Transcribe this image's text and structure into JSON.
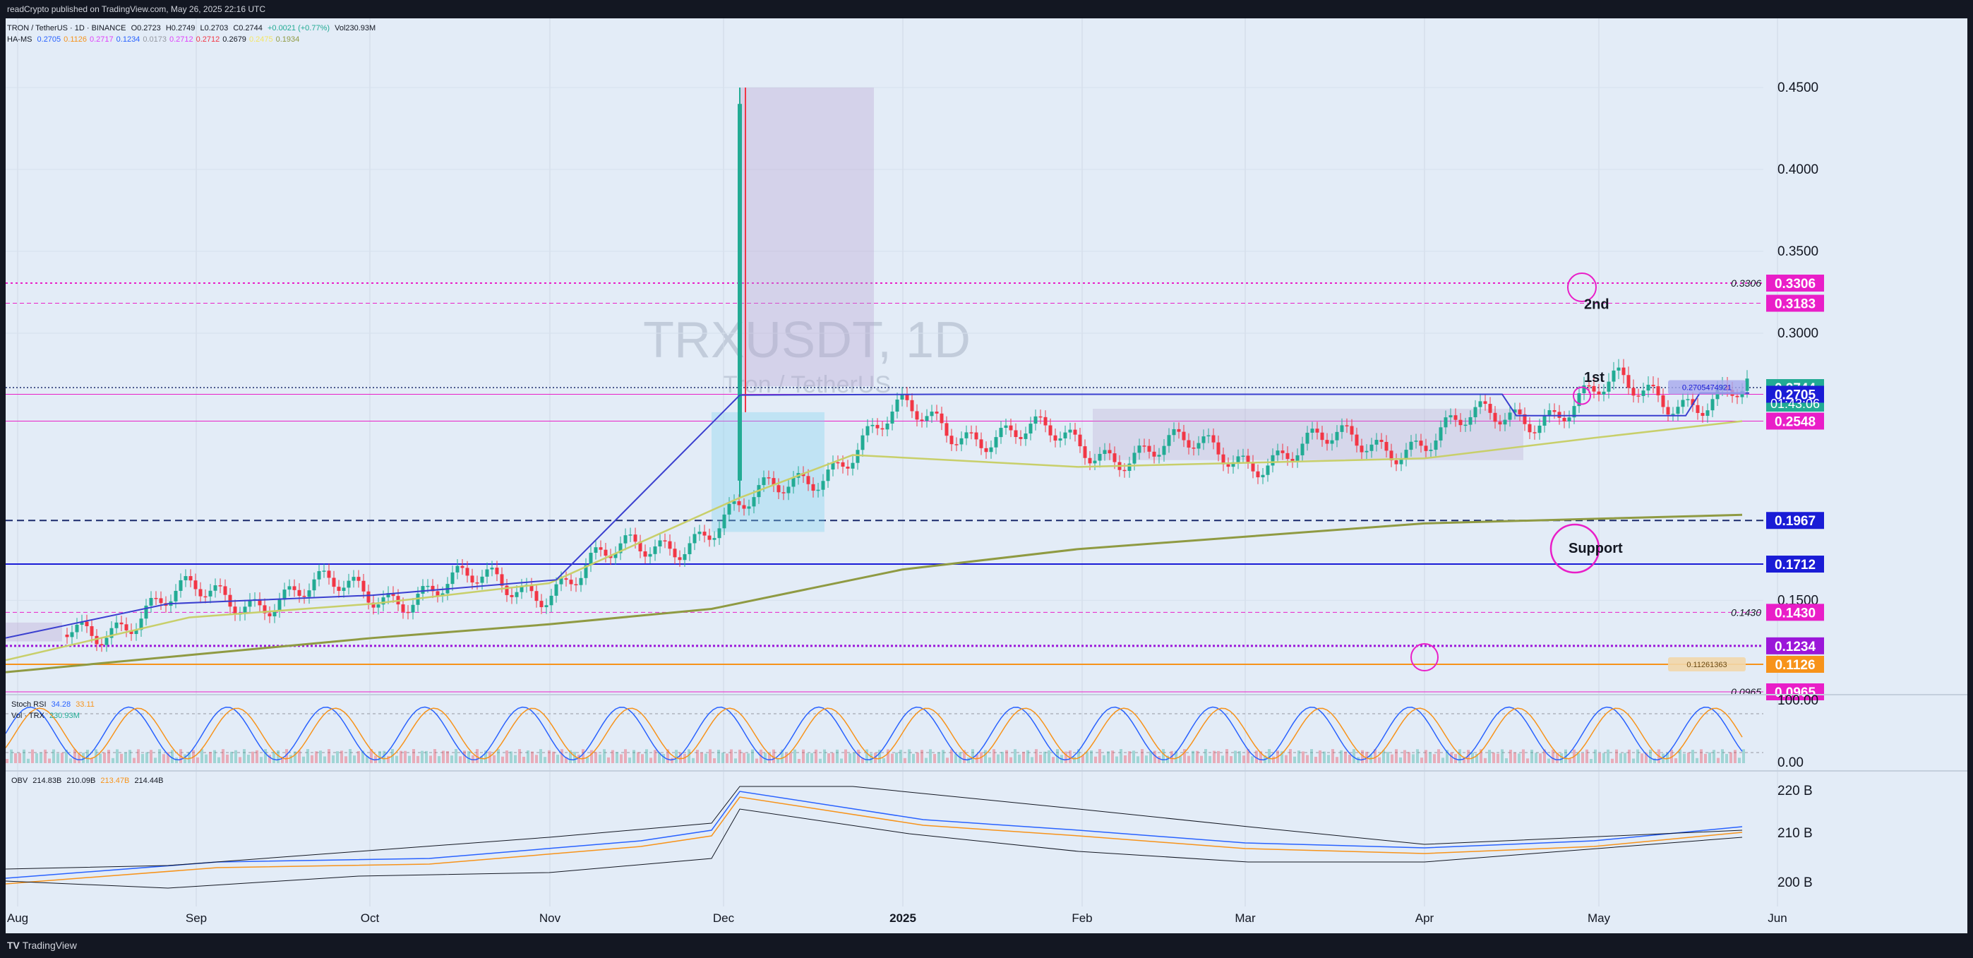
{
  "header": {
    "published": "readCrypto published on TradingView.com, May 26, 2025 22:16 UTC"
  },
  "footer": {
    "brand": "TradingView"
  },
  "legend_main": {
    "symbol": "TRON / TetherUS · 1D · BINANCE",
    "o": "O0.2723",
    "h": "H0.2749",
    "l": "L0.2703",
    "c": "C0.2744",
    "change": "+0.0021 (+0.77%)",
    "vol": "Vol230.93M"
  },
  "legend_hams": {
    "name": "HA-MS",
    "values": [
      "0.2705",
      "0.1126",
      "0.2717",
      "0.1234",
      "0.0173",
      "0.2712",
      "0.2712",
      "0.2679",
      "0.2475",
      "0.1934"
    ],
    "colors": [
      "#2962ff",
      "#f7931a",
      "#e040fb",
      "#2962ff",
      "#9598a1",
      "#e040fb",
      "#f23645",
      "#131722",
      "#f5e663",
      "#8f9a42"
    ]
  },
  "watermark": {
    "symbol": "TRXUSDT, 1D",
    "sub": "Tron / TetherUS"
  },
  "annotations": {
    "second": "2nd",
    "first": "1st",
    "support": "Support"
  },
  "price_axis": {
    "ticks": [
      "0.4500",
      "0.4000",
      "0.3500",
      "0.3000",
      "0.1500"
    ],
    "labels": [
      {
        "text": "0.3306",
        "bg": "#e91ec8",
        "value": 0.3306
      },
      {
        "text": "0.3183",
        "bg": "#e91ec8",
        "value": 0.3183
      },
      {
        "text": "0.2744",
        "bg": "#22ab94",
        "value": 0.2744
      },
      {
        "text": "0.2705",
        "bg": "#1a1cd6",
        "value": 0.2705
      },
      {
        "text": "0.2548",
        "bg": "#e91ec8",
        "value": 0.2548
      },
      {
        "text": "0.1967",
        "bg": "#1a1cd6",
        "value": 0.1967
      },
      {
        "text": "0.1712",
        "bg": "#1a1cd6",
        "value": 0.1712
      },
      {
        "text": "0.1430",
        "bg": "#e91ec8",
        "value": 0.143
      },
      {
        "text": "0.1234",
        "bg": "#9b16d9",
        "value": 0.1234
      },
      {
        "text": "0.1126",
        "bg": "#f7931a",
        "value": 0.1126
      },
      {
        "text": "0.0965",
        "bg": "#e91ec8",
        "value": 0.0965
      }
    ],
    "countdown": "01:43:06",
    "line_labels": [
      "0.3306",
      "0.1430",
      "0.0965"
    ],
    "hams_tag": "0.2705474921",
    "hams_tag2": "0.11261363"
  },
  "stoch": {
    "name": "Stoch RSI",
    "k": "34.28",
    "d": "33.11",
    "vol_label": "Vol · TRX",
    "vol_value": "230.93M",
    "ticks": [
      "100.00",
      "0.00"
    ]
  },
  "obv": {
    "name": "OBV",
    "values": [
      "214.83B",
      "210.09B",
      "213.47B",
      "214.44B"
    ],
    "ticks": [
      "220 B",
      "210 B",
      "200 B"
    ]
  },
  "time_axis": [
    "Aug",
    "Sep",
    "Oct",
    "Nov",
    "Dec",
    "2025",
    "Feb",
    "Mar",
    "Apr",
    "May",
    "Jun"
  ],
  "colors": {
    "up": "#22ab94",
    "down": "#f23645",
    "pink": "#e91ec8",
    "blue": "#1a1cd6",
    "purple": "#9b16d9",
    "orange": "#f7931a",
    "olive": "#8f9a42",
    "yellow": "#f5e663"
  },
  "chart_data": {
    "type": "candlestick",
    "title": "TRXUSDT, 1D",
    "ylim": [
      0.08,
      0.46
    ],
    "horizontal_levels": [
      0.3306,
      0.3183,
      0.2705,
      0.2548,
      0.1967,
      0.1712,
      0.143,
      0.1234,
      0.1126,
      0.0965
    ],
    "monthly_closes": {
      "x": [
        "Aug",
        "Sep",
        "Oct",
        "Nov",
        "Dec",
        "Jan",
        "Feb",
        "Mar",
        "Apr",
        "May"
      ],
      "values": [
        0.13,
        0.152,
        0.155,
        0.16,
        0.2,
        0.257,
        0.24,
        0.235,
        0.245,
        0.27
      ]
    },
    "last_price": 0.2744
  }
}
